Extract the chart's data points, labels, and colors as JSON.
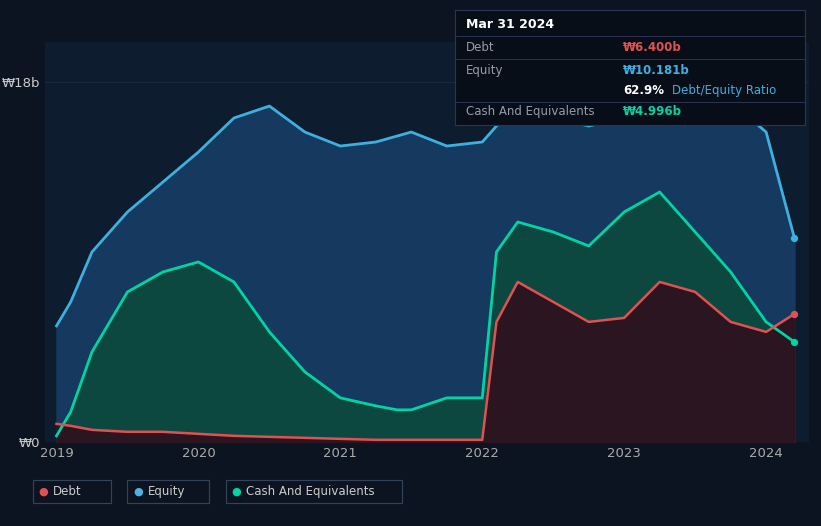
{
  "bg_color": "#0d1421",
  "plot_bg_color": "#0d1c2e",
  "grid_color": "#1c2d45",
  "ylabel_top": "₩18b",
  "ylabel_bottom": "₩0",
  "x_ticks": [
    2019,
    2020,
    2021,
    2022,
    2023,
    2024
  ],
  "ylim_max": 20,
  "tooltip": {
    "date": "Mar 31 2024",
    "debt_label": "Debt",
    "debt_value": "₩6.400b",
    "equity_label": "Equity",
    "equity_value": "₩10.181b",
    "ratio": "62.9%",
    "ratio_label": "Debt/Equity Ratio",
    "cash_label": "Cash And Equivalents",
    "cash_value": "₩4.996b"
  },
  "legend": [
    {
      "label": "Debt",
      "color": "#e05252"
    },
    {
      "label": "Equity",
      "color": "#4db3e6"
    },
    {
      "label": "Cash And Equivalents",
      "color": "#00d4a4"
    }
  ],
  "debt_color": "#e05252",
  "equity_color": "#3db0e0",
  "cash_color": "#00d4a4",
  "t": [
    2019.0,
    2019.1,
    2019.25,
    2019.5,
    2019.75,
    2020.0,
    2020.25,
    2020.5,
    2020.75,
    2021.0,
    2021.25,
    2021.4,
    2021.5,
    2021.75,
    2022.0,
    2022.1,
    2022.25,
    2022.5,
    2022.75,
    2023.0,
    2023.25,
    2023.5,
    2023.75,
    2024.0,
    2024.2
  ],
  "equity": [
    5.8,
    7.0,
    9.5,
    11.5,
    13.0,
    14.5,
    16.2,
    16.8,
    15.5,
    14.8,
    15.0,
    15.3,
    15.5,
    14.8,
    15.0,
    15.8,
    16.5,
    16.2,
    15.8,
    16.2,
    17.2,
    17.8,
    17.0,
    15.5,
    10.181
  ],
  "cash": [
    0.3,
    1.5,
    4.5,
    7.5,
    8.5,
    9.0,
    8.0,
    5.5,
    3.5,
    2.2,
    1.8,
    1.6,
    1.6,
    2.2,
    2.2,
    9.5,
    11.0,
    10.5,
    9.8,
    11.5,
    12.5,
    10.5,
    8.5,
    6.0,
    4.996
  ],
  "debt": [
    0.9,
    0.8,
    0.6,
    0.5,
    0.5,
    0.4,
    0.3,
    0.25,
    0.2,
    0.15,
    0.1,
    0.1,
    0.1,
    0.1,
    0.1,
    6.0,
    8.0,
    7.0,
    6.0,
    6.2,
    8.0,
    7.5,
    6.0,
    5.5,
    6.4
  ]
}
